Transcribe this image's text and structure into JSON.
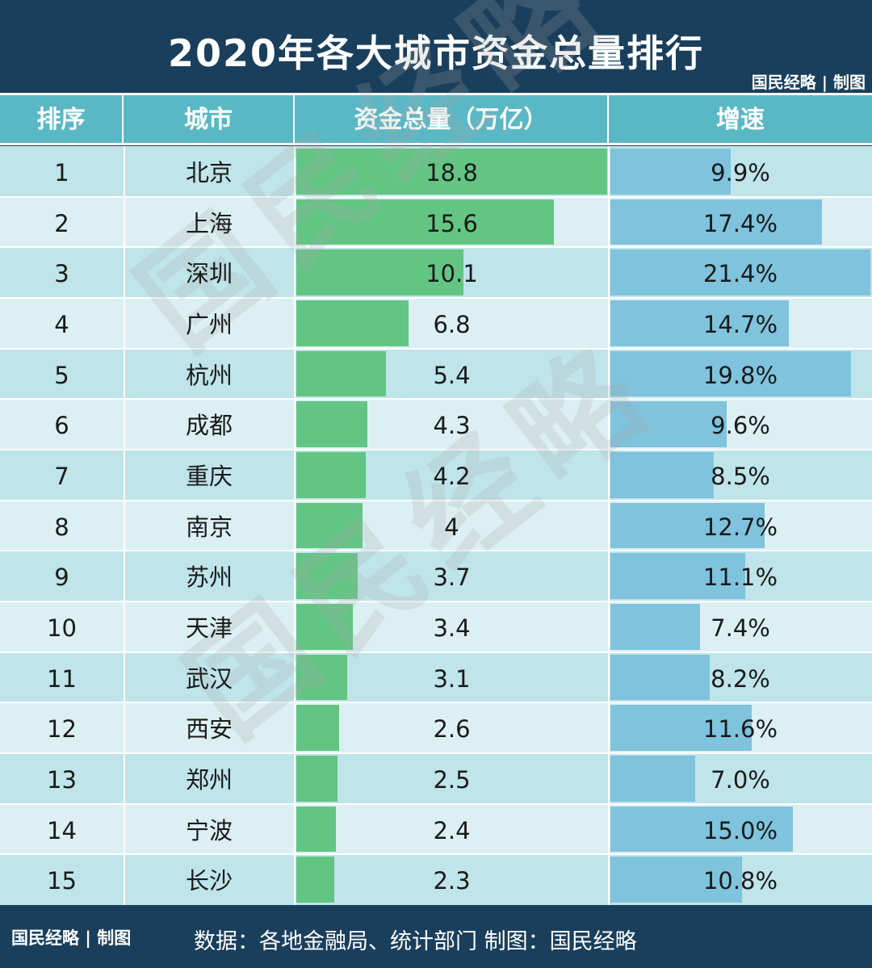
{
  "title": "2020年各大城市资金总量排行",
  "credit": "国民经略 | 制图",
  "watermark": "国民经略",
  "headers": {
    "rank": "排序",
    "city": "城市",
    "funds": "资金总量（万亿）",
    "growth": "增速"
  },
  "source": "数据：各地金融局、统计部门  制图：国民经略",
  "colors": {
    "header_bg": "#1a3f5c",
    "header_row": "#5ab8c4",
    "funds_bar": "#63c584",
    "growth_bar": "#7fc3dd"
  },
  "chart_data": {
    "type": "table",
    "rows": [
      {
        "rank": "1",
        "city": "北京",
        "funds": 18.8,
        "funds_label": "18.8",
        "growth": 9.9,
        "growth_label": "9.9%"
      },
      {
        "rank": "2",
        "city": "上海",
        "funds": 15.6,
        "funds_label": "15.6",
        "growth": 17.4,
        "growth_label": "17.4%"
      },
      {
        "rank": "3",
        "city": "深圳",
        "funds": 10.1,
        "funds_label": "10.1",
        "growth": 21.4,
        "growth_label": "21.4%"
      },
      {
        "rank": "4",
        "city": "广州",
        "funds": 6.8,
        "funds_label": "6.8",
        "growth": 14.7,
        "growth_label": "14.7%"
      },
      {
        "rank": "5",
        "city": "杭州",
        "funds": 5.4,
        "funds_label": "5.4",
        "growth": 19.8,
        "growth_label": "19.8%"
      },
      {
        "rank": "6",
        "city": "成都",
        "funds": 4.3,
        "funds_label": "4.3",
        "growth": 9.6,
        "growth_label": "9.6%"
      },
      {
        "rank": "7",
        "city": "重庆",
        "funds": 4.2,
        "funds_label": "4.2",
        "growth": 8.5,
        "growth_label": "8.5%"
      },
      {
        "rank": "8",
        "city": "南京",
        "funds": 4.0,
        "funds_label": "4",
        "growth": 12.7,
        "growth_label": "12.7%"
      },
      {
        "rank": "9",
        "city": "苏州",
        "funds": 3.7,
        "funds_label": "3.7",
        "growth": 11.1,
        "growth_label": "11.1%"
      },
      {
        "rank": "10",
        "city": "天津",
        "funds": 3.4,
        "funds_label": "3.4",
        "growth": 7.4,
        "growth_label": "7.4%"
      },
      {
        "rank": "11",
        "city": "武汉",
        "funds": 3.1,
        "funds_label": "3.1",
        "growth": 8.2,
        "growth_label": "8.2%"
      },
      {
        "rank": "12",
        "city": "西安",
        "funds": 2.6,
        "funds_label": "2.6",
        "growth": 11.6,
        "growth_label": "11.6%"
      },
      {
        "rank": "13",
        "city": "郑州",
        "funds": 2.5,
        "funds_label": "2.5",
        "growth": 7.0,
        "growth_label": "7.0%"
      },
      {
        "rank": "14",
        "city": "宁波",
        "funds": 2.4,
        "funds_label": "2.4",
        "growth": 15.0,
        "growth_label": "15.0%"
      },
      {
        "rank": "15",
        "city": "长沙",
        "funds": 2.3,
        "funds_label": "2.3",
        "growth": 10.8,
        "growth_label": "10.8%"
      }
    ]
  }
}
